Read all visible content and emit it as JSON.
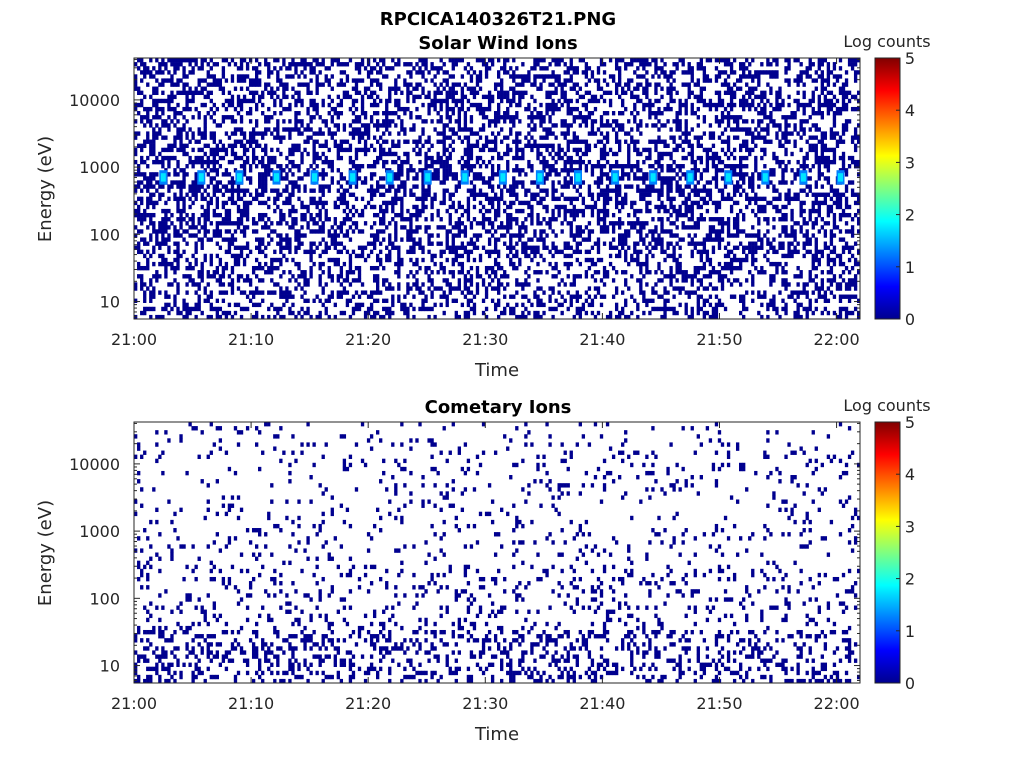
{
  "figure_title": "RPCICA140326T21.PNG",
  "colormap": [
    "#00008f",
    "#0000ff",
    "#0080ff",
    "#00ffff",
    "#80ff80",
    "#ffff00",
    "#ff8000",
    "#ff0000",
    "#800000"
  ],
  "chart_data": [
    {
      "type": "heatmap",
      "title": "Solar Wind Ions",
      "xlabel": "Time",
      "ylabel": "Energy (eV)",
      "y_scale": "log",
      "x_ticks": [
        "21:00",
        "21:10",
        "21:20",
        "21:30",
        "21:40",
        "21:50",
        "22:00"
      ],
      "y_ticks": [
        "10",
        "100",
        "1000",
        "10000"
      ],
      "xlim": [
        "21:00",
        "22:02"
      ],
      "ylim": [
        5.5,
        42000
      ],
      "colorbar": {
        "label": "Log counts",
        "ticks": [
          "0",
          "1",
          "2",
          "3",
          "4",
          "5"
        ],
        "range": [
          0,
          5
        ]
      },
      "background_level": 0,
      "background_density": "dense noise, log counts ~0 at all energies",
      "peaks": {
        "energy_range_eV": [
          550,
          900
        ],
        "log_counts": 2,
        "times": [
          "21:02:30",
          "21:05:45",
          "21:09:00",
          "21:12:10",
          "21:15:25",
          "21:18:40",
          "21:21:50",
          "21:25:05",
          "21:28:15",
          "21:31:30",
          "21:34:40",
          "21:37:55",
          "21:41:05",
          "21:44:20",
          "21:47:30",
          "21:50:45",
          "21:53:55",
          "21:57:10",
          "22:00:20"
        ]
      }
    },
    {
      "type": "heatmap",
      "title": "Cometary Ions",
      "xlabel": "Time",
      "ylabel": "Energy (eV)",
      "y_scale": "log",
      "x_ticks": [
        "21:00",
        "21:10",
        "21:20",
        "21:30",
        "21:40",
        "21:50",
        "22:00"
      ],
      "y_ticks": [
        "10",
        "100",
        "1000",
        "10000"
      ],
      "xlim": [
        "21:00",
        "22:02"
      ],
      "ylim": [
        5.5,
        42000
      ],
      "colorbar": {
        "label": "Log counts",
        "ticks": [
          "0",
          "1",
          "2",
          "3",
          "4",
          "5"
        ],
        "range": [
          0,
          5
        ]
      },
      "background_level": 0,
      "background_density": "sparse noise, denser at low energies",
      "peaks": null
    }
  ]
}
